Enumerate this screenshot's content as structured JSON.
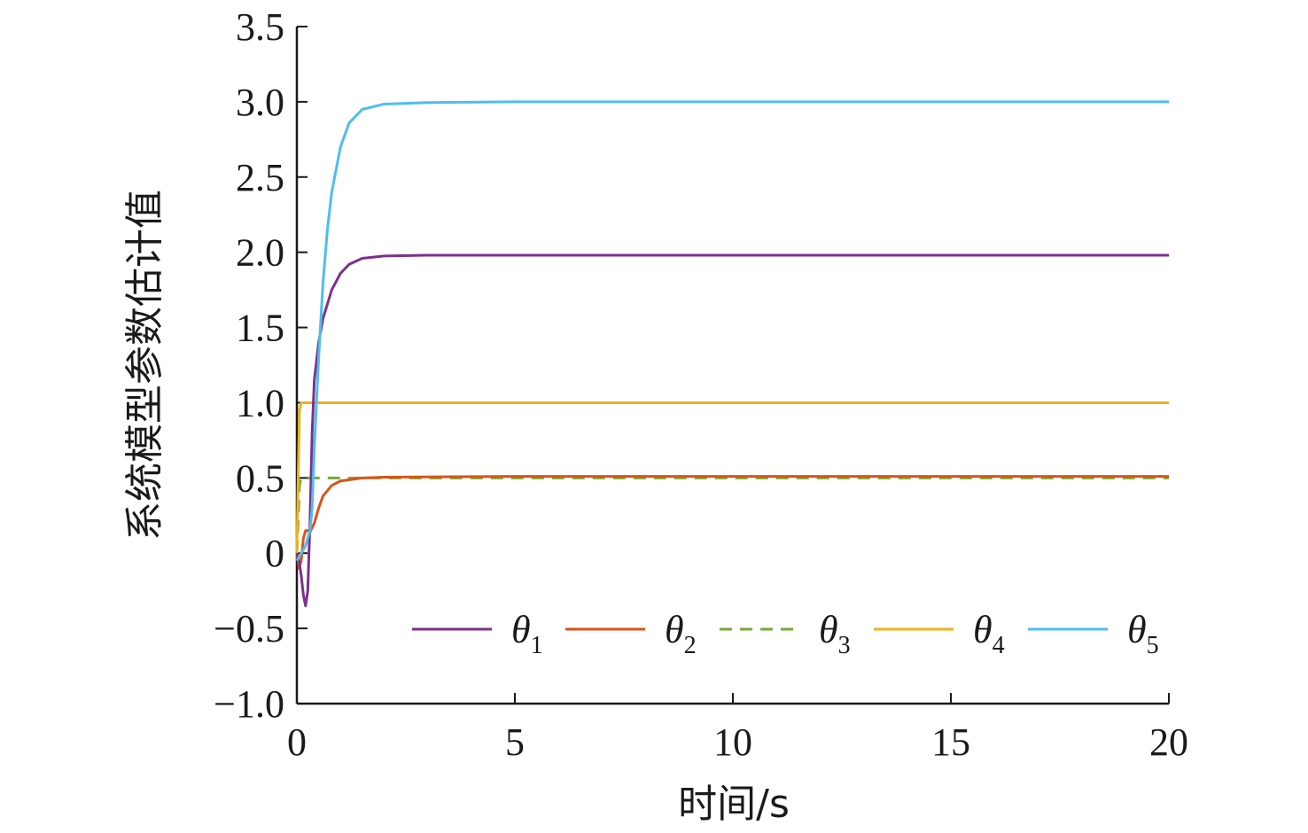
{
  "chart_data": {
    "type": "line",
    "title": "",
    "xlabel": "时间/s",
    "ylabel": "系统模型参数估计值",
    "xlim": [
      0,
      20
    ],
    "ylim": [
      -1.0,
      3.5
    ],
    "x_ticks": [
      0,
      5,
      10,
      15,
      20
    ],
    "x_tick_labels": [
      "0",
      "5",
      "10",
      "15",
      "20"
    ],
    "y_ticks": [
      -1.0,
      -0.5,
      0,
      0.5,
      1.0,
      1.5,
      2.0,
      2.5,
      3.0,
      3.5
    ],
    "y_tick_labels": [
      "−1.0",
      "−0.5",
      "0",
      "0.5",
      "1.0",
      "1.5",
      "2.0",
      "2.5",
      "3.0",
      "3.5"
    ],
    "grid": false,
    "legend_position": "bottom-right",
    "series": [
      {
        "name": "θ1",
        "symbol": "θ",
        "subscript": "1",
        "color": "#7e2f8e",
        "dash": false,
        "points": [
          [
            0,
            0
          ],
          [
            0.05,
            -0.05
          ],
          [
            0.1,
            -0.15
          ],
          [
            0.15,
            -0.28
          ],
          [
            0.2,
            -0.35
          ],
          [
            0.25,
            -0.25
          ],
          [
            0.3,
            0.2
          ],
          [
            0.35,
            0.8
          ],
          [
            0.4,
            1.15
          ],
          [
            0.5,
            1.4
          ],
          [
            0.6,
            1.56
          ],
          [
            0.8,
            1.75
          ],
          [
            1.0,
            1.86
          ],
          [
            1.2,
            1.92
          ],
          [
            1.5,
            1.96
          ],
          [
            2.0,
            1.975
          ],
          [
            3,
            1.98
          ],
          [
            5,
            1.98
          ],
          [
            10,
            1.98
          ],
          [
            15,
            1.98
          ],
          [
            20,
            1.98
          ]
        ]
      },
      {
        "name": "θ2",
        "symbol": "θ",
        "subscript": "2",
        "color": "#d95319",
        "dash": false,
        "points": [
          [
            0,
            0
          ],
          [
            0.05,
            -0.1
          ],
          [
            0.1,
            -0.05
          ],
          [
            0.15,
            0.1
          ],
          [
            0.2,
            0.15
          ],
          [
            0.25,
            0.15
          ],
          [
            0.3,
            0.14
          ],
          [
            0.4,
            0.2
          ],
          [
            0.5,
            0.3
          ],
          [
            0.6,
            0.38
          ],
          [
            0.8,
            0.45
          ],
          [
            1.0,
            0.48
          ],
          [
            1.5,
            0.5
          ],
          [
            2,
            0.505
          ],
          [
            5,
            0.51
          ],
          [
            10,
            0.51
          ],
          [
            15,
            0.51
          ],
          [
            20,
            0.51
          ]
        ]
      },
      {
        "name": "θ3",
        "symbol": "θ",
        "subscript": "3",
        "color": "#77ac30",
        "dash": true,
        "points": [
          [
            0,
            0
          ],
          [
            0.03,
            0.2
          ],
          [
            0.06,
            0.45
          ],
          [
            0.1,
            0.5
          ],
          [
            0.5,
            0.5
          ],
          [
            2,
            0.5
          ],
          [
            5,
            0.5
          ],
          [
            10,
            0.5
          ],
          [
            15,
            0.5
          ],
          [
            20,
            0.5
          ]
        ]
      },
      {
        "name": "θ4",
        "symbol": "θ",
        "subscript": "4",
        "color": "#edb120",
        "dash": false,
        "points": [
          [
            0,
            0
          ],
          [
            0.03,
            0.5
          ],
          [
            0.06,
            0.95
          ],
          [
            0.1,
            1.0
          ],
          [
            0.3,
            1.0
          ],
          [
            0.5,
            1.0
          ],
          [
            1,
            1.0
          ],
          [
            5,
            1.0
          ],
          [
            10,
            1.0
          ],
          [
            15,
            1.0
          ],
          [
            20,
            1.0
          ]
        ]
      },
      {
        "name": "θ5",
        "symbol": "θ",
        "subscript": "5",
        "color": "#4dbeee",
        "dash": false,
        "points": [
          [
            0,
            -0.05
          ],
          [
            0.1,
            0.0
          ],
          [
            0.2,
            0.05
          ],
          [
            0.3,
            0.15
          ],
          [
            0.35,
            0.3
          ],
          [
            0.4,
            0.7
          ],
          [
            0.5,
            1.3
          ],
          [
            0.6,
            1.8
          ],
          [
            0.7,
            2.15
          ],
          [
            0.8,
            2.4
          ],
          [
            1.0,
            2.7
          ],
          [
            1.2,
            2.86
          ],
          [
            1.5,
            2.95
          ],
          [
            2.0,
            2.985
          ],
          [
            3,
            2.995
          ],
          [
            5,
            3.0
          ],
          [
            10,
            3.0
          ],
          [
            15,
            3.0
          ],
          [
            20,
            3.0
          ]
        ]
      }
    ]
  }
}
